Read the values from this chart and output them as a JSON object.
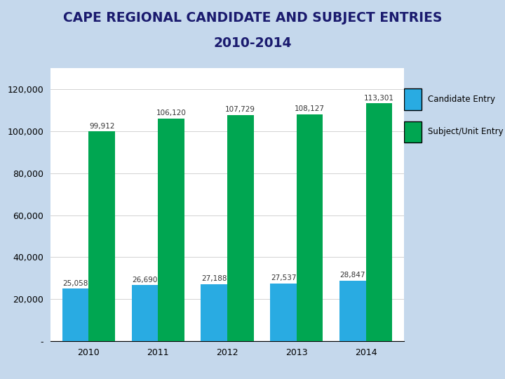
{
  "title_line1": "CAPE REGIONAL CANDIDATE AND SUBJECT ENTRIES",
  "title_line2": "2010-2014",
  "title_bg_color": "#7BA7D0",
  "title_text_color": "#1A1A6E",
  "years": [
    "2010",
    "2011",
    "2012",
    "2013",
    "2014"
  ],
  "candidate_entries": [
    25058,
    26690,
    27188,
    27537,
    28847
  ],
  "subject_entries": [
    99912,
    106120,
    107729,
    108127,
    113301
  ],
  "candidate_color": "#29ABE2",
  "subject_color": "#00A651",
  "ylim": [
    0,
    130000
  ],
  "yticks": [
    0,
    20000,
    40000,
    60000,
    80000,
    100000,
    120000
  ],
  "ytick_labels": [
    "-",
    "20,000",
    "40,000",
    "60,000",
    "80,000",
    "100,000",
    "120,000"
  ],
  "legend_candidate": "Candidate Entry",
  "legend_subject": "Subject/Unit Entry",
  "bar_width": 0.38,
  "bg_color": "#C5D8EC",
  "plot_bg_color": "#FFFFFF",
  "font_color": "#333333",
  "label_fontsize": 8,
  "axis_fontsize": 9
}
